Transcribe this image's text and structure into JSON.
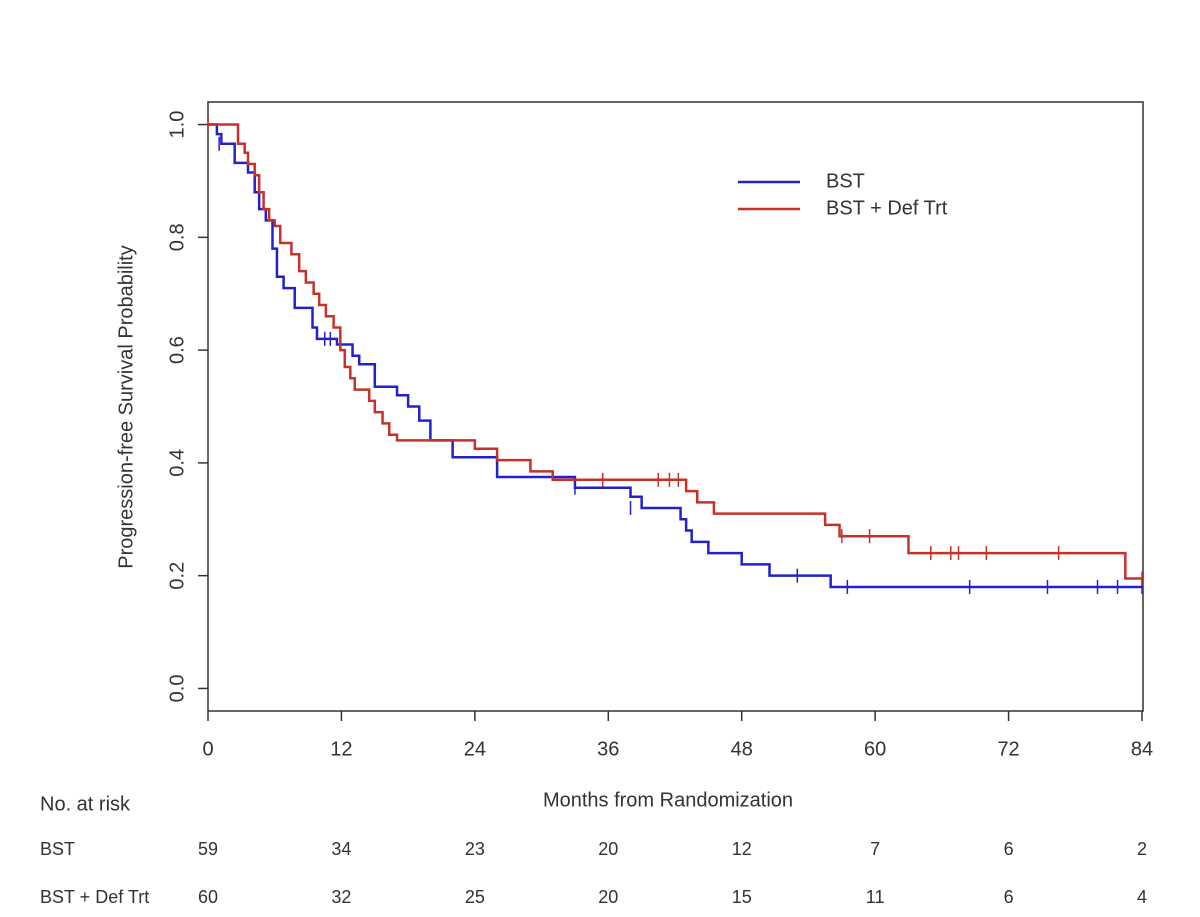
{
  "chart_data": {
    "type": "step",
    "x_label": "Months from Randomization",
    "y_label": "Progression-free Survival Probability",
    "xlim": [
      0,
      84
    ],
    "ylim": [
      -0.04,
      1.04
    ],
    "xticks": [
      0,
      12,
      24,
      36,
      48,
      60,
      72,
      84
    ],
    "yticks": [
      {
        "value": 0,
        "label": "0.0"
      },
      {
        "value": 0.2,
        "label": "0.2"
      },
      {
        "value": 0.4,
        "label": "0.4"
      },
      {
        "value": 0.6,
        "label": "0.6"
      },
      {
        "value": 0.8,
        "label": "0.8"
      },
      {
        "value": 1,
        "label": "1.0"
      }
    ],
    "legend": "top right",
    "risk_title": "No. at risk",
    "series": [
      {
        "name": "BST",
        "color": "#2222cc",
        "x": [
          0,
          0.8,
          1.2,
          2.4,
          3.6,
          4.2,
          4.6,
          5.2,
          5.8,
          6.2,
          6.8,
          7.8,
          9.4,
          9.8,
          11.6,
          13,
          13.6,
          15,
          17,
          18,
          19,
          20,
          22,
          26,
          33,
          38,
          39,
          42.5,
          43,
          43.5,
          45,
          48,
          50.5,
          56,
          84
        ],
        "values": [
          1,
          0.983,
          0.966,
          0.932,
          0.915,
          0.88,
          0.85,
          0.83,
          0.78,
          0.73,
          0.71,
          0.675,
          0.64,
          0.62,
          0.61,
          0.59,
          0.575,
          0.535,
          0.52,
          0.5,
          0.475,
          0.44,
          0.41,
          0.375,
          0.356,
          0.34,
          0.32,
          0.3,
          0.28,
          0.26,
          0.24,
          0.22,
          0.2,
          0.18,
          0.18
        ],
        "censor_x": [
          1,
          10.5,
          11,
          33,
          38,
          53,
          57.5,
          68.5,
          75.5,
          80,
          81.8,
          84
        ],
        "censor_y": [
          0.966,
          0.62,
          0.62,
          0.356,
          0.32,
          0.2,
          0.18,
          0.18,
          0.18,
          0.18,
          0.18,
          0.18
        ],
        "at_risk": [
          59,
          34,
          23,
          20,
          12,
          7,
          6,
          2
        ]
      },
      {
        "name": "BST + Def Trt",
        "color": "#c8302a",
        "x": [
          0,
          2.7,
          3.3,
          3.6,
          4.2,
          4.6,
          5,
          5.5,
          6,
          6.5,
          7.5,
          8.2,
          8.8,
          9.5,
          10,
          10.6,
          11.3,
          11.9,
          12.3,
          12.8,
          13.2,
          14.5,
          15,
          15.7,
          16.3,
          17,
          24,
          26,
          29,
          31,
          43,
          44,
          45.5,
          55.5,
          56.8,
          63,
          82.5,
          84
        ],
        "values": [
          1,
          0.966,
          0.95,
          0.93,
          0.91,
          0.88,
          0.85,
          0.83,
          0.82,
          0.79,
          0.77,
          0.74,
          0.72,
          0.7,
          0.68,
          0.66,
          0.64,
          0.6,
          0.57,
          0.55,
          0.53,
          0.51,
          0.49,
          0.47,
          0.45,
          0.44,
          0.425,
          0.405,
          0.385,
          0.37,
          0.35,
          0.33,
          0.31,
          0.29,
          0.27,
          0.24,
          0.195,
          0.195
        ],
        "censor_x": [
          0,
          35.5,
          40.5,
          41.5,
          42.3,
          57,
          59.5,
          65,
          66.8,
          67.5,
          70,
          76.5,
          84
        ],
        "censor_y": [
          1,
          0.37,
          0.37,
          0.37,
          0.37,
          0.27,
          0.27,
          0.24,
          0.24,
          0.24,
          0.24,
          0.24,
          0.195
        ],
        "at_risk": [
          60,
          32,
          25,
          20,
          15,
          11,
          6,
          4
        ]
      }
    ]
  }
}
